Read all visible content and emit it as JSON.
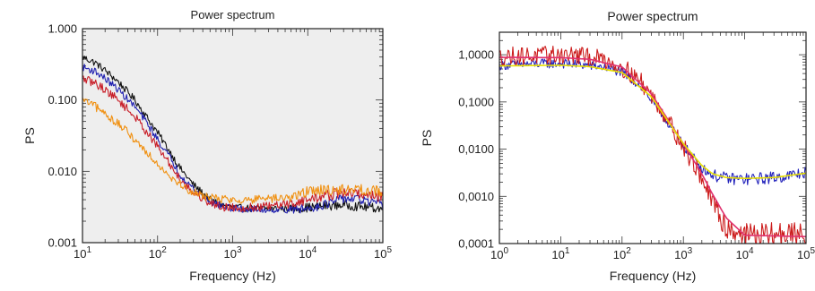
{
  "chart_data": [
    {
      "type": "line",
      "title": "Power spectrum",
      "xlabel": "Frequency (Hz)",
      "ylabel": "PS",
      "x_scale": "log",
      "y_scale": "log",
      "xlim": [
        10,
        100000
      ],
      "ylim": [
        0.001,
        1.0
      ],
      "grid": false,
      "plot_background": "#eeeeee",
      "x_ticks": [
        {
          "value": 10,
          "base": "10",
          "exp": "1"
        },
        {
          "value": 100,
          "base": "10",
          "exp": "2"
        },
        {
          "value": 1000,
          "base": "10",
          "exp": "3"
        },
        {
          "value": 10000,
          "base": "10",
          "exp": "4"
        },
        {
          "value": 100000,
          "base": "10",
          "exp": "5"
        }
      ],
      "y_ticks": [
        {
          "value": 0.001,
          "label": "0.001"
        },
        {
          "value": 0.01,
          "label": "0.010"
        },
        {
          "value": 0.1,
          "label": "0.100"
        },
        {
          "value": 1.0,
          "label": "1.000"
        }
      ],
      "series": [
        {
          "color": "#111111",
          "noise": 0.05,
          "points": [
            [
              10,
              0.4
            ],
            [
              15,
              0.33
            ],
            [
              20,
              0.26
            ],
            [
              30,
              0.18
            ],
            [
              50,
              0.1
            ],
            [
              70,
              0.06
            ],
            [
              100,
              0.035
            ],
            [
              150,
              0.018
            ],
            [
              200,
              0.011
            ],
            [
              300,
              0.0065
            ],
            [
              500,
              0.004
            ],
            [
              700,
              0.0034
            ],
            [
              1000,
              0.0031
            ],
            [
              2000,
              0.003
            ],
            [
              5000,
              0.003
            ],
            [
              10000,
              0.0031
            ],
            [
              20000,
              0.0033
            ],
            [
              30000,
              0.0034
            ],
            [
              50000,
              0.0032
            ],
            [
              100000,
              0.003
            ]
          ]
        },
        {
          "color": "#2020b0",
          "noise": 0.05,
          "points": [
            [
              10,
              0.29
            ],
            [
              15,
              0.25
            ],
            [
              20,
              0.2
            ],
            [
              30,
              0.14
            ],
            [
              50,
              0.08
            ],
            [
              70,
              0.05
            ],
            [
              100,
              0.028
            ],
            [
              150,
              0.015
            ],
            [
              200,
              0.009
            ],
            [
              300,
              0.0057
            ],
            [
              500,
              0.0038
            ],
            [
              700,
              0.0033
            ],
            [
              1000,
              0.003
            ],
            [
              2000,
              0.0029
            ],
            [
              5000,
              0.0029
            ],
            [
              10000,
              0.003
            ],
            [
              20000,
              0.0036
            ],
            [
              30000,
              0.0042
            ],
            [
              50000,
              0.004
            ],
            [
              100000,
              0.0033
            ]
          ]
        },
        {
          "color": "#c81e28",
          "noise": 0.06,
          "points": [
            [
              10,
              0.2
            ],
            [
              15,
              0.17
            ],
            [
              20,
              0.14
            ],
            [
              30,
              0.1
            ],
            [
              50,
              0.058
            ],
            [
              70,
              0.037
            ],
            [
              100,
              0.022
            ],
            [
              150,
              0.012
            ],
            [
              200,
              0.0078
            ],
            [
              300,
              0.005
            ],
            [
              500,
              0.0036
            ],
            [
              700,
              0.0032
            ],
            [
              1000,
              0.0031
            ],
            [
              2000,
              0.0031
            ],
            [
              5000,
              0.0034
            ],
            [
              10000,
              0.004
            ],
            [
              20000,
              0.0047
            ],
            [
              30000,
              0.005
            ],
            [
              50000,
              0.0048
            ],
            [
              100000,
              0.0044
            ]
          ]
        },
        {
          "color": "#f09010",
          "noise": 0.06,
          "points": [
            [
              10,
              0.1
            ],
            [
              15,
              0.08
            ],
            [
              20,
              0.064
            ],
            [
              30,
              0.046
            ],
            [
              50,
              0.028
            ],
            [
              70,
              0.019
            ],
            [
              100,
              0.013
            ],
            [
              150,
              0.0085
            ],
            [
              200,
              0.0065
            ],
            [
              300,
              0.005
            ],
            [
              500,
              0.0043
            ],
            [
              700,
              0.0041
            ],
            [
              1000,
              0.004
            ],
            [
              2000,
              0.004
            ],
            [
              5000,
              0.0042
            ],
            [
              8000,
              0.0048
            ],
            [
              10000,
              0.0052
            ],
            [
              15000,
              0.0055
            ],
            [
              20000,
              0.0054
            ],
            [
              30000,
              0.0056
            ],
            [
              50000,
              0.0055
            ],
            [
              100000,
              0.0052
            ]
          ]
        }
      ]
    },
    {
      "type": "line",
      "title": "Power spectrum",
      "xlabel": "Frequency (Hz)",
      "ylabel": "PS",
      "x_scale": "log",
      "y_scale": "log",
      "xlim": [
        1,
        100000
      ],
      "ylim": [
        0.0001,
        3.0
      ],
      "grid": false,
      "plot_background": "#ffffff",
      "x_ticks": [
        {
          "value": 1,
          "base": "10",
          "exp": "0"
        },
        {
          "value": 10,
          "base": "10",
          "exp": "1"
        },
        {
          "value": 100,
          "base": "10",
          "exp": "2"
        },
        {
          "value": 1000,
          "base": "10",
          "exp": "3"
        },
        {
          "value": 10000,
          "base": "10",
          "exp": "4"
        },
        {
          "value": 100000,
          "base": "10",
          "exp": "5"
        }
      ],
      "y_ticks": [
        {
          "value": 0.0001,
          "label": "0,0001"
        },
        {
          "value": 0.001,
          "label": "0,0010"
        },
        {
          "value": 0.01,
          "label": "0,0100"
        },
        {
          "value": 0.1,
          "label": "0,1000"
        },
        {
          "value": 1.0,
          "label": "1,0000"
        }
      ],
      "series": [
        {
          "color": "#2222bb",
          "noise": 0.1,
          "points": [
            [
              1,
              0.6
            ],
            [
              2,
              0.62
            ],
            [
              5,
              0.65
            ],
            [
              10,
              0.65
            ],
            [
              20,
              0.62
            ],
            [
              50,
              0.55
            ],
            [
              100,
              0.42
            ],
            [
              200,
              0.22
            ],
            [
              500,
              0.045
            ],
            [
              1000,
              0.012
            ],
            [
              2000,
              0.004
            ],
            [
              3000,
              0.0028
            ],
            [
              5000,
              0.0024
            ],
            [
              10000,
              0.0023
            ],
            [
              20000,
              0.0024
            ],
            [
              50000,
              0.0027
            ],
            [
              100000,
              0.0032
            ]
          ]
        },
        {
          "color": "#cc1c1c",
          "noise": 0.2,
          "points": [
            [
              1,
              0.9
            ],
            [
              2,
              0.95
            ],
            [
              5,
              0.95
            ],
            [
              10,
              1.0
            ],
            [
              20,
              0.95
            ],
            [
              50,
              0.8
            ],
            [
              100,
              0.55
            ],
            [
              200,
              0.28
            ],
            [
              500,
              0.055
            ],
            [
              1000,
              0.011
            ],
            [
              2000,
              0.0025
            ],
            [
              3000,
              0.0007
            ],
            [
              5000,
              0.00022
            ],
            [
              10000,
              0.00016
            ],
            [
              20000,
              0.00015
            ],
            [
              50000,
              0.00016
            ],
            [
              100000,
              0.00015
            ]
          ]
        },
        {
          "color": "#e0306e",
          "noise": 0,
          "points": [
            [
              1,
              0.88
            ],
            [
              10,
              0.87
            ],
            [
              30,
              0.8
            ],
            [
              100,
              0.55
            ],
            [
              300,
              0.15
            ],
            [
              1000,
              0.013
            ],
            [
              2000,
              0.003
            ],
            [
              3000,
              0.0011
            ],
            [
              5000,
              0.00035
            ],
            [
              10000,
              0.00015
            ],
            [
              100000,
              0.00014
            ]
          ]
        },
        {
          "color": "#e8e000",
          "noise": 0,
          "points": [
            [
              1,
              0.58
            ],
            [
              10,
              0.6
            ],
            [
              30,
              0.56
            ],
            [
              100,
              0.42
            ],
            [
              300,
              0.13
            ],
            [
              1000,
              0.013
            ],
            [
              2000,
              0.0045
            ],
            [
              3000,
              0.003
            ],
            [
              5000,
              0.0025
            ],
            [
              10000,
              0.0024
            ],
            [
              30000,
              0.0025
            ],
            [
              100000,
              0.0031
            ]
          ]
        }
      ]
    }
  ]
}
